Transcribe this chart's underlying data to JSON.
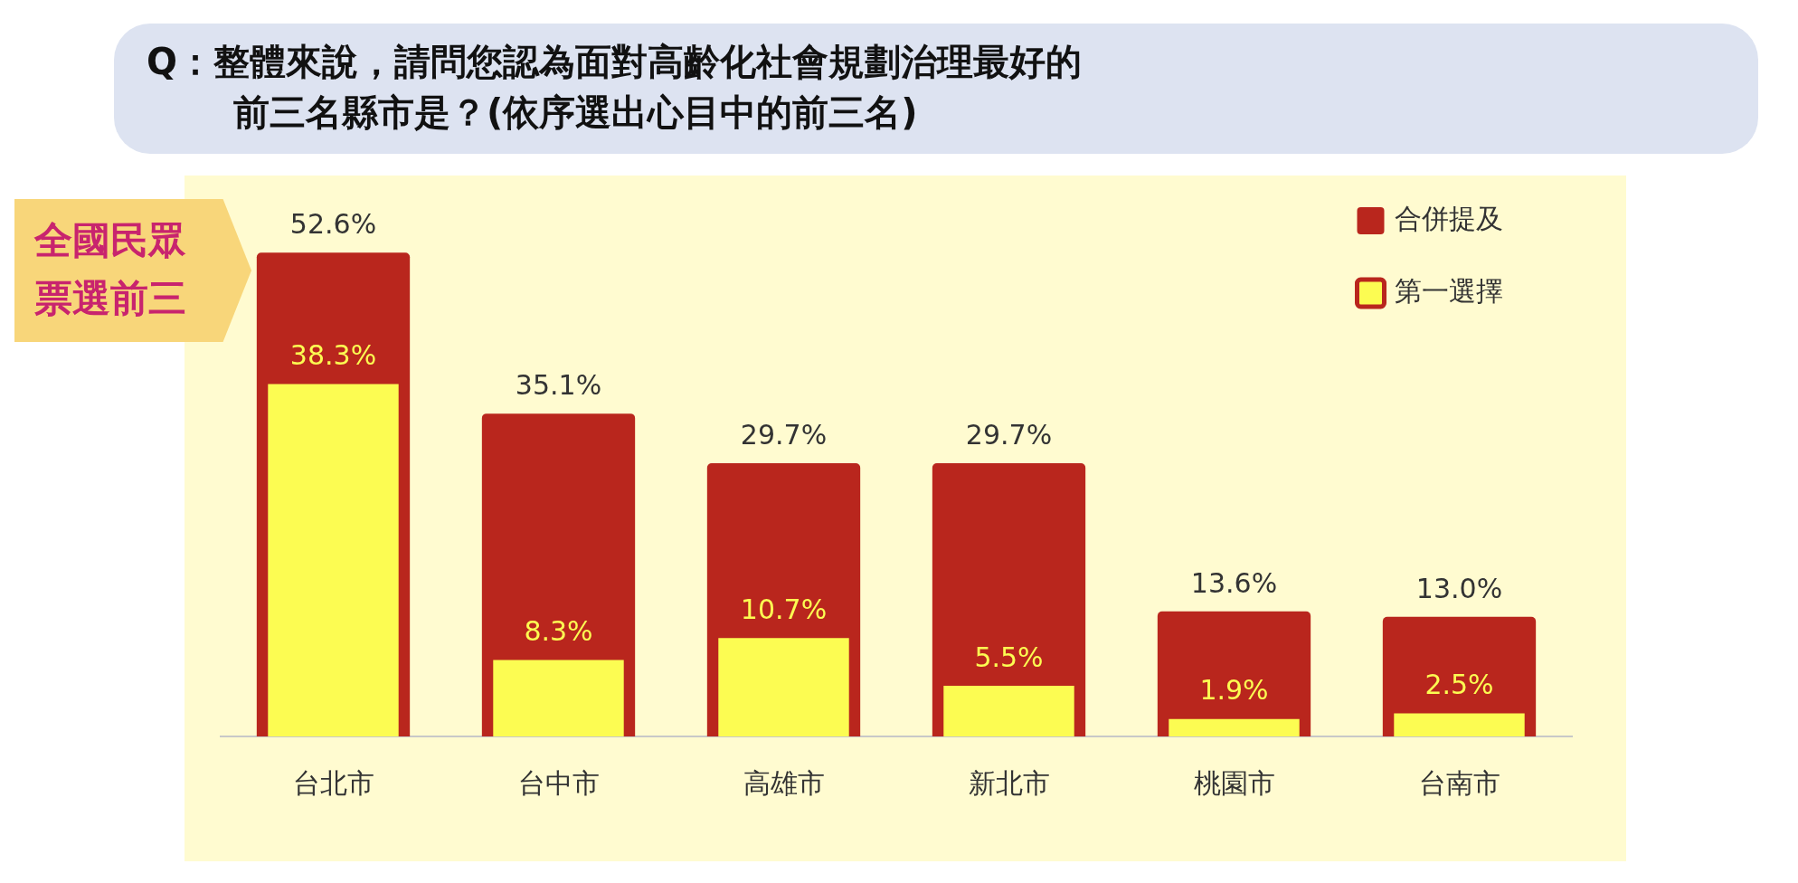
{
  "chart_data": {
    "type": "bar",
    "title": "Q：整體來說，請問您認為面對高齡化社會規劃治理最好的前三名縣市是？(依序選出心目中的前三名)",
    "annotations": [
      "全國民眾票選前三"
    ],
    "categories": [
      "台北市",
      "台中市",
      "高雄市",
      "新北市",
      "桃園市",
      "台南市"
    ],
    "series": [
      {
        "name": "合併提及",
        "color": "#b9261d",
        "values": [
          52.6,
          35.1,
          29.7,
          29.7,
          13.6,
          13.0
        ],
        "value_labels": [
          "52.6%",
          "35.1%",
          "29.7%",
          "29.7%",
          "13.6%",
          "13.0%"
        ]
      },
      {
        "name": "第一選擇",
        "color": "#fcfc52",
        "values": [
          38.3,
          8.3,
          10.7,
          5.5,
          1.9,
          2.5
        ],
        "value_labels": [
          "38.3%",
          "8.3%",
          "10.7%",
          "5.5%",
          "1.9%",
          "2.5%"
        ]
      }
    ],
    "tick_labels": "x",
    "grid": false,
    "legend": "top right"
  }
}
